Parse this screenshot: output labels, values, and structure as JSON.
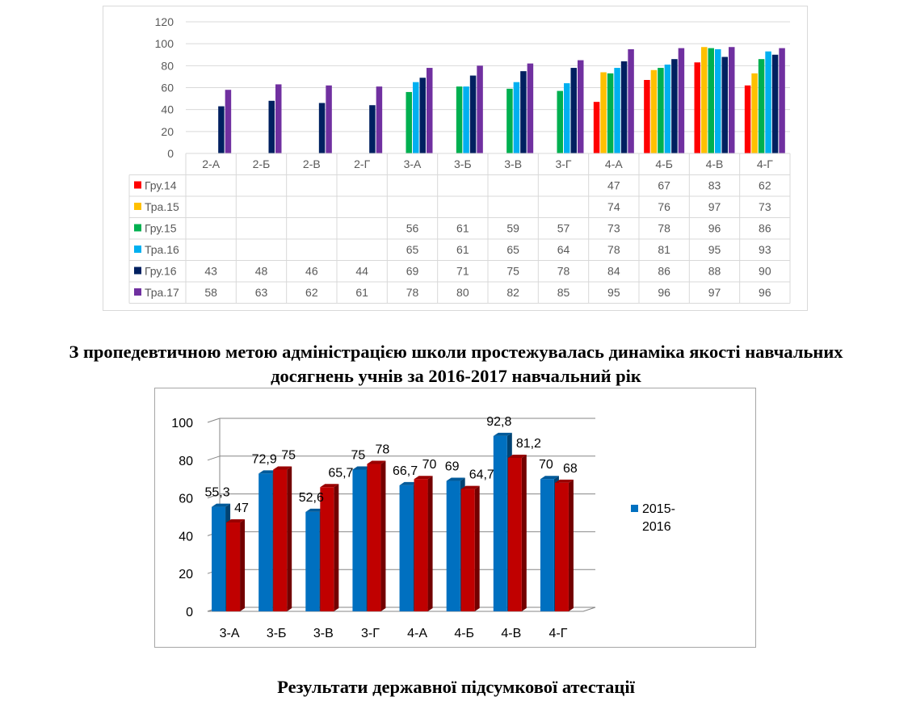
{
  "chart_data": [
    {
      "type": "bar",
      "categories": [
        "2-А",
        "2-Б",
        "2-В",
        "2-Г",
        "3-А",
        "3-Б",
        "3-В",
        "3-Г",
        "4-А",
        "4-Б",
        "4-В",
        "4-Г"
      ],
      "series": [
        {
          "name": "Гру.14",
          "color": "#ff0000",
          "values": [
            null,
            null,
            null,
            null,
            null,
            null,
            null,
            null,
            47,
            67,
            83,
            62
          ]
        },
        {
          "name": "Тра.15",
          "color": "#ffc000",
          "values": [
            null,
            null,
            null,
            null,
            null,
            null,
            null,
            null,
            74,
            76,
            97,
            73
          ]
        },
        {
          "name": "Гру.15",
          "color": "#00b050",
          "values": [
            null,
            null,
            null,
            null,
            56,
            61,
            59,
            57,
            73,
            78,
            96,
            86
          ]
        },
        {
          "name": "Тра.16",
          "color": "#00b0f0",
          "values": [
            null,
            null,
            null,
            null,
            65,
            61,
            65,
            64,
            78,
            81,
            95,
            93
          ]
        },
        {
          "name": "Гру.16",
          "color": "#002060",
          "values": [
            43,
            48,
            46,
            44,
            69,
            71,
            75,
            78,
            84,
            86,
            88,
            90
          ]
        },
        {
          "name": "Тра.17",
          "color": "#7030a0",
          "values": [
            58,
            63,
            62,
            61,
            78,
            80,
            82,
            85,
            95,
            96,
            97,
            96
          ]
        }
      ],
      "ylim": [
        0,
        120
      ],
      "yticks": [
        0,
        20,
        40,
        60,
        80,
        100,
        120
      ],
      "grid": true,
      "legend": "data-table"
    },
    {
      "type": "bar",
      "categories": [
        "3-А",
        "3-Б",
        "3-В",
        "3-Г",
        "4-А",
        "4-Б",
        "4-В",
        "4-Г"
      ],
      "series": [
        {
          "name": "2015-2016",
          "name_lines": [
            "2015-",
            "2016"
          ],
          "color": "#0070c0",
          "values": [
            55.3,
            72.9,
            52.6,
            75,
            66.7,
            69,
            92.8,
            70
          ],
          "labels": [
            "55,3",
            "72,9",
            "52,6",
            "75",
            "66,7",
            "69",
            "92,8",
            "70"
          ]
        },
        {
          "color": "#c00000",
          "values": [
            47,
            75,
            65.7,
            78,
            70,
            64.7,
            81.2,
            68
          ],
          "labels": [
            "47",
            "75",
            "65,7",
            "78",
            "70",
            "64,7",
            "81,2",
            "68"
          ]
        }
      ],
      "ylim": [
        0,
        100
      ],
      "yticks": [
        0,
        20,
        40,
        60,
        80,
        100
      ],
      "grid": true,
      "legend": "right"
    }
  ],
  "text": {
    "heading1_line1": "З пропедевтичною метою адміністрацією школи простежувалась динаміка якості навчальних",
    "heading1_line2": "досягнень учнів за 2016-2017 навчальний рік",
    "heading2": "Результати державної підсумкової атестації"
  }
}
